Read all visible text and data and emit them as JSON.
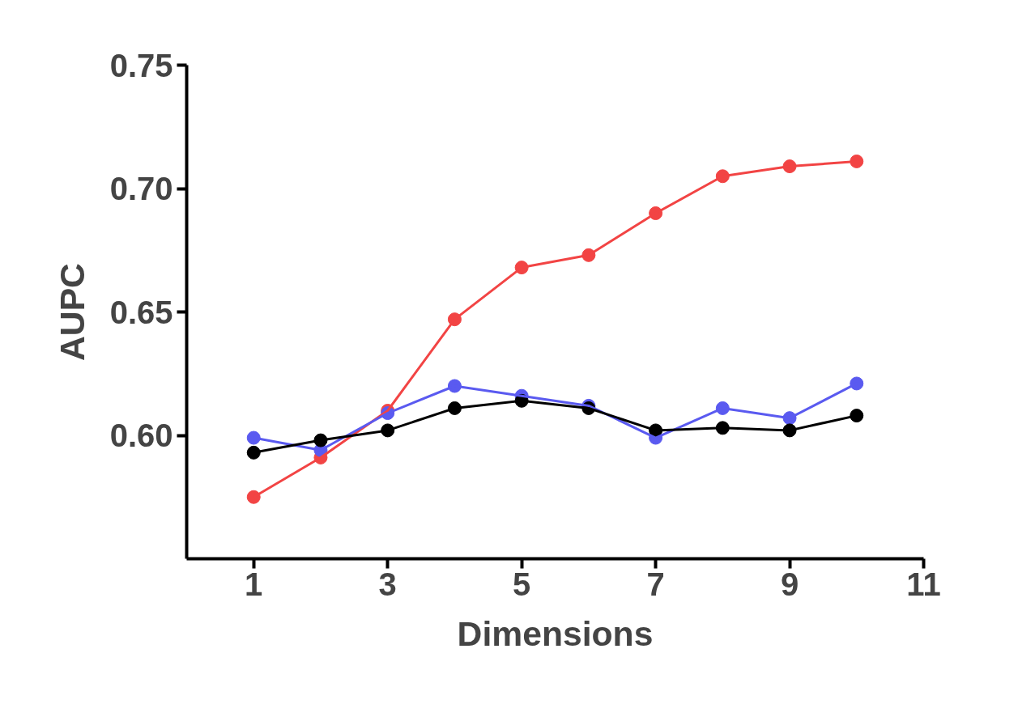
{
  "chart_data": {
    "type": "line",
    "xlabel": "Dimensions",
    "ylabel": "AUPC",
    "x": [
      1,
      2,
      3,
      4,
      5,
      6,
      7,
      8,
      9,
      10
    ],
    "series": [
      {
        "color": "#f24444",
        "values": [
          0.575,
          0.591,
          0.61,
          0.647,
          0.668,
          0.673,
          0.69,
          0.705,
          0.709,
          0.711
        ]
      },
      {
        "color": "#5a5af0",
        "values": [
          0.599,
          0.594,
          0.609,
          0.62,
          0.616,
          0.612,
          0.599,
          0.611,
          0.607,
          0.621
        ]
      },
      {
        "color": "#000000",
        "values": [
          0.593,
          0.598,
          0.602,
          0.611,
          0.614,
          0.611,
          0.602,
          0.603,
          0.602,
          0.608
        ]
      }
    ],
    "xlim": [
      0,
      11
    ],
    "xticks": [
      1,
      3,
      5,
      7,
      9,
      11
    ],
    "ylim": [
      0.55,
      0.75
    ],
    "yticks": [
      {
        "value": 0.6,
        "label": "0.60"
      },
      {
        "value": 0.65,
        "label": "0.65"
      },
      {
        "value": 0.7,
        "label": "0.70"
      },
      {
        "value": 0.75,
        "label": "0.75"
      }
    ],
    "marker": "circle",
    "line_style": "solid"
  }
}
